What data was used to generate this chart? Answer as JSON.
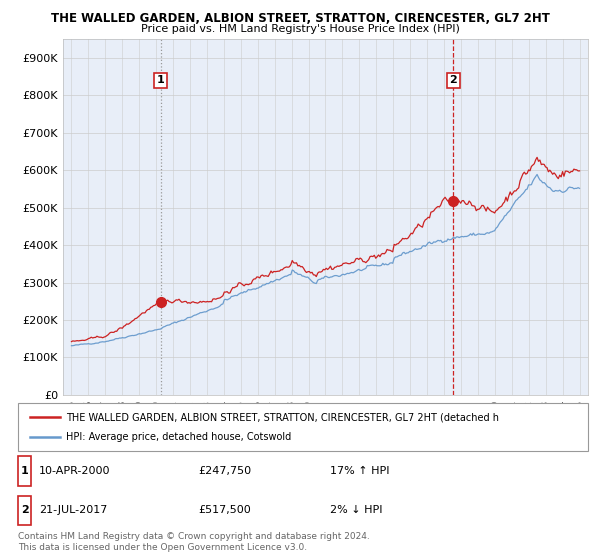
{
  "title1": "THE WALLED GARDEN, ALBION STREET, STRATTON, CIRENCESTER, GL7 2HT",
  "title2": "Price paid vs. HM Land Registry's House Price Index (HPI)",
  "ylabel_ticks": [
    "£0",
    "£100K",
    "£200K",
    "£300K",
    "£400K",
    "£500K",
    "£600K",
    "£700K",
    "£800K",
    "£900K"
  ],
  "ytick_values": [
    0,
    100000,
    200000,
    300000,
    400000,
    500000,
    600000,
    700000,
    800000,
    900000
  ],
  "ylim": [
    0,
    950000
  ],
  "legend_line1": "THE WALLED GARDEN, ALBION STREET, STRATTON, CIRENCESTER, GL7 2HT (detached h",
  "legend_line2": "HPI: Average price, detached house, Cotswold",
  "marker1_date": "10-APR-2000",
  "marker1_price": "£247,750",
  "marker1_hpi": "17% ↑ HPI",
  "marker1_year": 2000.27,
  "marker1_value": 247750,
  "marker2_date": "21-JUL-2017",
  "marker2_price": "£517,500",
  "marker2_hpi": "2% ↓ HPI",
  "marker2_year": 2017.55,
  "marker2_value": 517500,
  "copyright_text": "Contains HM Land Registry data © Crown copyright and database right 2024.\nThis data is licensed under the Open Government Licence v3.0.",
  "hpi_color": "#6699cc",
  "price_color": "#cc2222",
  "plot_bg": "#e8eef8",
  "grid_color": "#cccccc"
}
